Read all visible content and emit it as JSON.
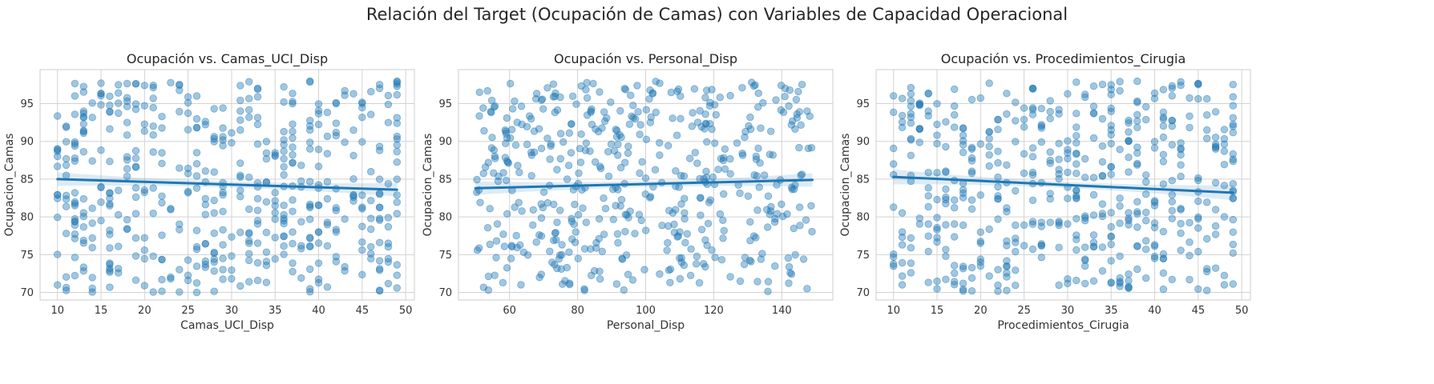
{
  "figure": {
    "title": "Relación del Target (Ocupación de Camas) con Variables de Capacidad Operacional"
  },
  "colors": {
    "points": "#1f77b4",
    "fit_line": "#1f77b4",
    "ci_band": "#1f77b4",
    "grid": "#d3d3d3",
    "axes_border": "#cccccc"
  },
  "chart_data": [
    {
      "type": "scatter",
      "title": "Ocupación vs. Camas_UCI_Disp",
      "xlabel": "Camas_UCI_Disp",
      "ylabel": "Ocupacion_Camas",
      "xlim": [
        8,
        51
      ],
      "ylim": [
        69,
        99.5
      ],
      "xticks": [
        10,
        15,
        20,
        25,
        30,
        35,
        40,
        45,
        50
      ],
      "yticks": [
        70,
        75,
        80,
        85,
        90,
        95
      ],
      "x_range": [
        10,
        49
      ],
      "y_range": [
        70,
        98
      ],
      "n_points": 500,
      "discrete_x": true,
      "grid": true,
      "regression": {
        "x": [
          10,
          49
        ],
        "y": [
          85.0,
          83.6
        ],
        "ci_halfwidth_edge": 0.9,
        "ci_halfwidth_mid": 0.4
      }
    },
    {
      "type": "scatter",
      "title": "Ocupación vs. Personal_Disp",
      "xlabel": "Personal_Disp",
      "ylabel": "Ocupacion_Camas",
      "xlim": [
        45,
        155
      ],
      "ylim": [
        69,
        99.5
      ],
      "xticks": [
        60,
        80,
        100,
        120,
        140
      ],
      "yticks": [
        70,
        75,
        80,
        85,
        90,
        95
      ],
      "x_range": [
        50,
        149
      ],
      "y_range": [
        70,
        98
      ],
      "n_points": 500,
      "discrete_x": false,
      "grid": true,
      "regression": {
        "x": [
          50,
          149
        ],
        "y": [
          83.8,
          84.9
        ],
        "ci_halfwidth_edge": 0.9,
        "ci_halfwidth_mid": 0.4
      }
    },
    {
      "type": "scatter",
      "title": "Ocupación vs. Procedimientos_Cirugia",
      "xlabel": "Procedimientos_Cirugia",
      "ylabel": "Ocupacion_Camas",
      "xlim": [
        8,
        51
      ],
      "ylim": [
        69,
        99.5
      ],
      "xticks": [
        10,
        15,
        20,
        25,
        30,
        35,
        40,
        45,
        50
      ],
      "yticks": [
        70,
        75,
        80,
        85,
        90,
        95
      ],
      "x_range": [
        10,
        49
      ],
      "y_range": [
        70,
        98
      ],
      "n_points": 500,
      "discrete_x": true,
      "grid": true,
      "regression": {
        "x": [
          10,
          49
        ],
        "y": [
          85.3,
          83.2
        ],
        "ci_halfwidth_edge": 1.0,
        "ci_halfwidth_mid": 0.4
      }
    }
  ]
}
